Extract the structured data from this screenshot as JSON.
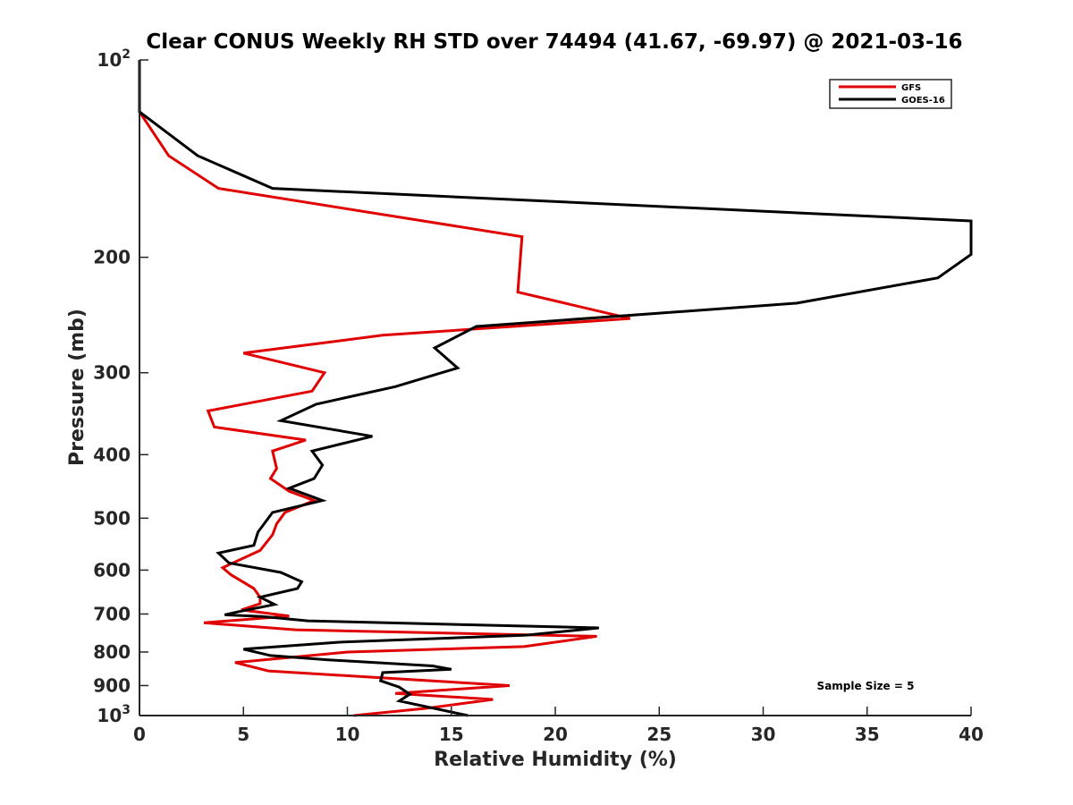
{
  "chart_data": {
    "type": "line",
    "title": "Clear CONUS Weekly RH STD over 74494 (41.67, -69.97) @ 2021-03-16",
    "xlabel": "Relative Humidity (%)",
    "ylabel": "Pressure (mb)",
    "xlim": [
      0,
      40
    ],
    "ylim": [
      100,
      1000
    ],
    "yscale": "log",
    "yreversed": false,
    "grid": false,
    "legend_placement": "top-right",
    "x_ticks": [
      0,
      5,
      10,
      15,
      20,
      25,
      30,
      35,
      40
    ],
    "x_tick_labels": [
      "0",
      "5",
      "10",
      "15",
      "20",
      "25",
      "30",
      "35",
      "40"
    ],
    "y_ticks": [
      100,
      200,
      300,
      400,
      500,
      600,
      700,
      800,
      900,
      1000
    ],
    "y_tick_labels": [
      {
        "base": "10",
        "exp": "2"
      },
      {
        "text": "200"
      },
      {
        "text": "300"
      },
      {
        "text": "400"
      },
      {
        "text": "500"
      },
      {
        "text": "600"
      },
      {
        "text": "700"
      },
      {
        "text": "800"
      },
      {
        "text": "900"
      },
      {
        "base": "10",
        "exp": "3"
      }
    ],
    "annotation": "Sample Size = 5",
    "series": [
      {
        "name": "GFS",
        "color": "#e00000",
        "points": [
          [
            0.0,
            100
          ],
          [
            0.0,
            120
          ],
          [
            1.4,
            140
          ],
          [
            3.8,
            157
          ],
          [
            18.4,
            186
          ],
          [
            18.2,
            226
          ],
          [
            23.6,
            248
          ],
          [
            11.7,
            263
          ],
          [
            5.0,
            280
          ],
          [
            8.9,
            300
          ],
          [
            8.3,
            320
          ],
          [
            3.3,
            343
          ],
          [
            3.6,
            363
          ],
          [
            8.0,
            380
          ],
          [
            6.4,
            395
          ],
          [
            6.6,
            420
          ],
          [
            6.3,
            435
          ],
          [
            7.2,
            455
          ],
          [
            8.4,
            470
          ],
          [
            7.0,
            490
          ],
          [
            6.6,
            510
          ],
          [
            6.4,
            530
          ],
          [
            5.8,
            560
          ],
          [
            4.0,
            595
          ],
          [
            4.4,
            610
          ],
          [
            5.5,
            640
          ],
          [
            5.8,
            660
          ],
          [
            5.8,
            675
          ],
          [
            4.9,
            690
          ],
          [
            7.2,
            705
          ],
          [
            3.1,
            722
          ],
          [
            7.5,
            740
          ],
          [
            22.0,
            757
          ],
          [
            18.5,
            785
          ],
          [
            10.0,
            800
          ],
          [
            4.6,
            830
          ],
          [
            6.2,
            855
          ],
          [
            17.8,
            900
          ],
          [
            12.3,
            925
          ],
          [
            17.0,
            945
          ],
          [
            13.8,
            975
          ],
          [
            10.3,
            1000
          ]
        ]
      },
      {
        "name": "GOES-16",
        "color": "#000000",
        "points": [
          [
            0.0,
            100
          ],
          [
            0.0,
            120
          ],
          [
            2.8,
            140
          ],
          [
            6.4,
            157
          ],
          [
            40.0,
            176
          ],
          [
            40.0,
            198
          ],
          [
            38.4,
            215
          ],
          [
            31.6,
            235
          ],
          [
            16.2,
            255
          ],
          [
            14.2,
            275
          ],
          [
            15.3,
            295
          ],
          [
            12.3,
            315
          ],
          [
            8.5,
            335
          ],
          [
            6.8,
            355
          ],
          [
            11.2,
            375
          ],
          [
            8.3,
            395
          ],
          [
            8.8,
            415
          ],
          [
            8.4,
            435
          ],
          [
            7.2,
            450
          ],
          [
            8.8,
            470
          ],
          [
            6.4,
            490
          ],
          [
            5.7,
            525
          ],
          [
            5.5,
            550
          ],
          [
            3.8,
            565
          ],
          [
            4.3,
            585
          ],
          [
            6.8,
            605
          ],
          [
            7.8,
            625
          ],
          [
            7.6,
            640
          ],
          [
            5.8,
            660
          ],
          [
            6.5,
            677
          ],
          [
            4.7,
            695
          ],
          [
            4.1,
            702
          ],
          [
            5.9,
            706
          ],
          [
            8.1,
            717
          ],
          [
            22.1,
            735
          ],
          [
            18.6,
            754
          ],
          [
            9.6,
            773
          ],
          [
            5.0,
            792
          ],
          [
            6.3,
            810
          ],
          [
            9.0,
            822
          ],
          [
            14.1,
            840
          ],
          [
            15.0,
            850
          ],
          [
            11.7,
            860
          ],
          [
            11.6,
            885
          ],
          [
            12.5,
            905
          ],
          [
            13.0,
            928
          ],
          [
            12.5,
            950
          ],
          [
            15.8,
            1000
          ]
        ]
      }
    ]
  }
}
